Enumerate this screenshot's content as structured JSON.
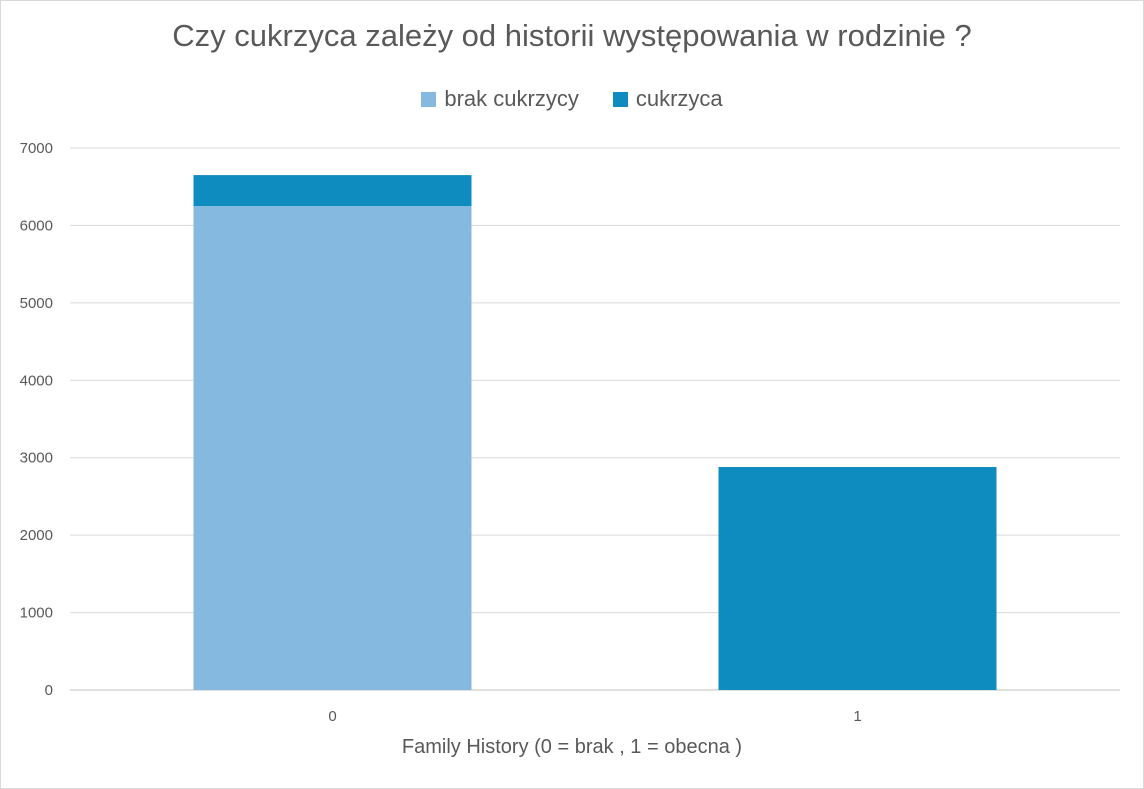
{
  "chart_data": {
    "type": "bar",
    "stacked": true,
    "title": "Czy cukrzyca zależy od historii występowania w rodzinie ?",
    "xlabel": "Family History (0 = brak , 1 = obecna )",
    "ylabel": "",
    "categories": [
      "0",
      "1"
    ],
    "series": [
      {
        "name": "brak cukrzycy",
        "color": "#85b9e0",
        "values": [
          6250,
          0
        ]
      },
      {
        "name": "cukrzyca",
        "color": "#0e8bbf",
        "values": [
          400,
          2880
        ]
      }
    ],
    "ylim": [
      0,
      7000
    ],
    "yticks": [
      0,
      1000,
      2000,
      3000,
      4000,
      5000,
      6000,
      7000
    ],
    "grid": true,
    "legend": "top"
  }
}
